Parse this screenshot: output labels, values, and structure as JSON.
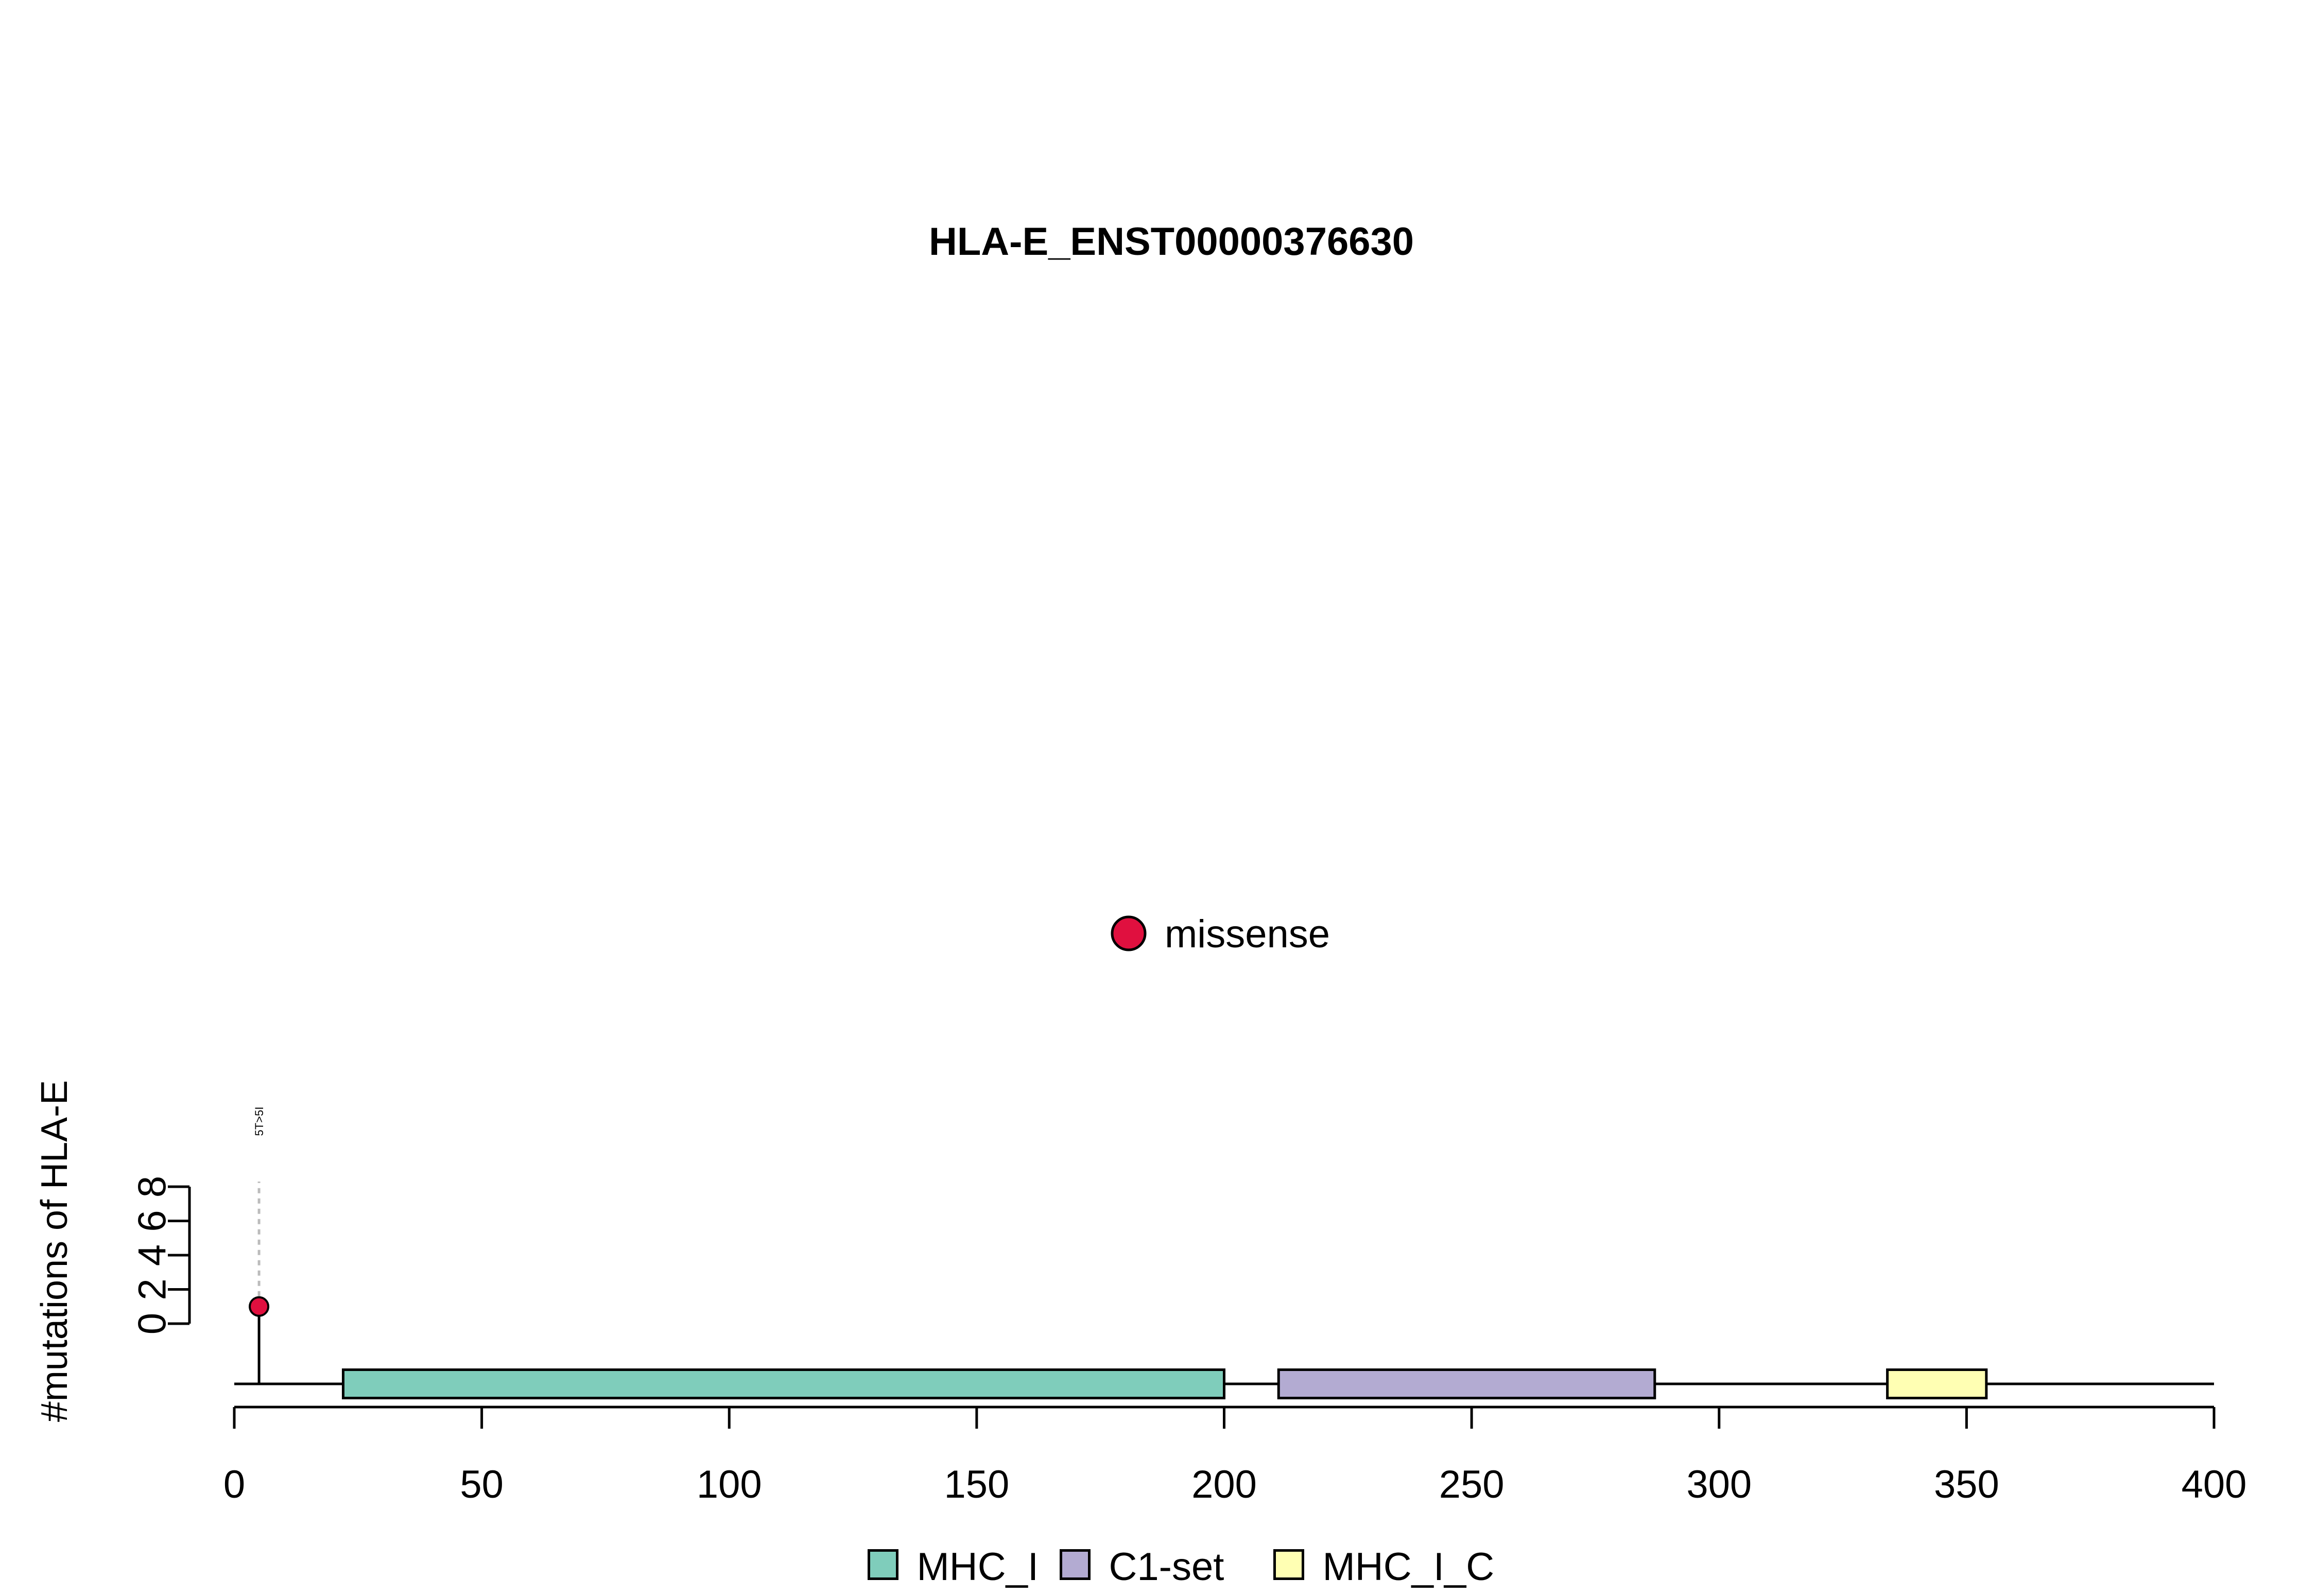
{
  "chart_data": {
    "type": "lollipop",
    "title": "HLA-E_ENST00000376630",
    "xlabel": "",
    "ylabel": "#mutations of HLA-E",
    "xlim": [
      0,
      400
    ],
    "xticks": [
      0,
      50,
      100,
      150,
      200,
      250,
      300,
      350,
      400
    ],
    "ylim": [
      0,
      8
    ],
    "yticks": [
      0,
      2,
      4,
      6,
      8
    ],
    "protein_length": 400,
    "domains": [
      {
        "name": "MHC_I",
        "start": 22,
        "end": 200,
        "color": "#7fcdbb"
      },
      {
        "name": "C1-set",
        "start": 211,
        "end": 287,
        "color": "#b3abd2"
      },
      {
        "name": "MHC_I_C",
        "start": 334,
        "end": 354,
        "color": "#ffffb3"
      }
    ],
    "mutations": [
      {
        "position": 5,
        "count": 1,
        "label": "5T>5I",
        "type": "missense"
      }
    ],
    "mutation_legend": [
      {
        "name": "missense",
        "color": "#e0103f"
      }
    ],
    "domain_legend": [
      {
        "name": "MHC_I",
        "color": "#7fcdbb"
      },
      {
        "name": "C1-set",
        "color": "#b3abd2"
      },
      {
        "name": "MHC_I_C",
        "color": "#ffffb3"
      }
    ]
  }
}
